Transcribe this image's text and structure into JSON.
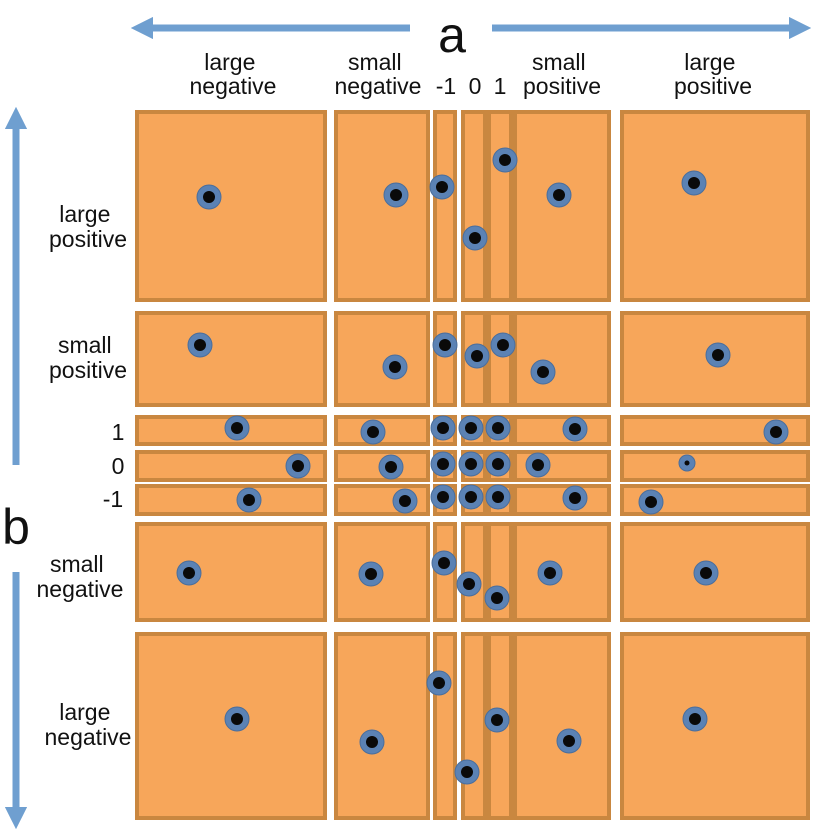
{
  "axis_a": {
    "label": "a",
    "columns": [
      "large negative",
      "small negative",
      "-1",
      "0",
      "1",
      "small positive",
      "large positive"
    ],
    "column_lines": [
      [
        "large",
        "negative"
      ],
      [
        "small",
        "negative"
      ],
      [
        "-1"
      ],
      [
        "0"
      ],
      [
        "1"
      ],
      [
        "small",
        "positive"
      ],
      [
        "large",
        "positive"
      ]
    ]
  },
  "axis_b": {
    "label": "b",
    "rows": [
      "large positive",
      "small positive",
      "1",
      "0",
      "-1",
      "small negative",
      "large negative"
    ],
    "row_lines": [
      [
        "large",
        "positive"
      ],
      [
        "small",
        "positive"
      ],
      [
        "1"
      ],
      [
        "0"
      ],
      [
        "-1"
      ],
      [
        "small",
        "negative"
      ],
      [
        "large",
        "negative"
      ]
    ]
  },
  "colors": {
    "cell_fill": "#F7A65A",
    "cell_stroke": "#C98740",
    "arrow": "#6F9FD0",
    "dot_ring": "#5B82B4",
    "dot_center": "#0A0A0A",
    "text": "#111111"
  },
  "icons": [
    "double-arrow-horizontal-icon",
    "double-arrow-vertical-icon"
  ],
  "note": ""
}
